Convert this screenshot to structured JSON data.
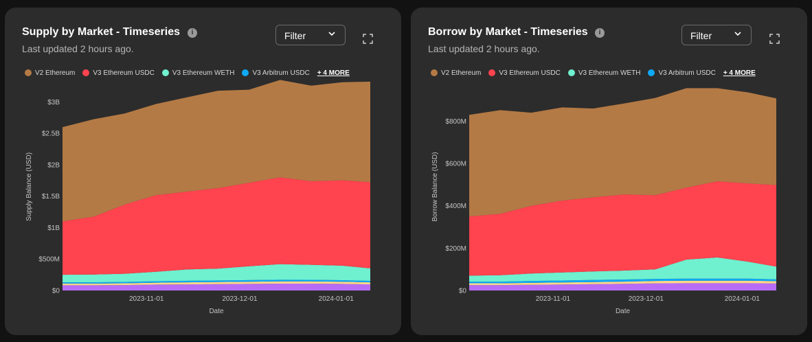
{
  "legend": {
    "items": [
      {
        "label": "V2 Ethereum",
        "color": "#b47a45"
      },
      {
        "label": "V3 Ethereum USDC",
        "color": "#ff434f"
      },
      {
        "label": "V3 Ethereum WETH",
        "color": "#6ff0cf"
      },
      {
        "label": "V3 Arbitrum USDC",
        "color": "#0fa9f5"
      }
    ],
    "more": "+ 4 MORE"
  },
  "supply": {
    "title": "Supply by Market - Timeseries",
    "subtitle": "Last updated 2 hours ago.",
    "filter_label": "Filter"
  },
  "borrow": {
    "title": "Borrow by Market - Timeseries",
    "subtitle": "Last updated 2 hours ago.",
    "filter_label": "Filter"
  },
  "chart_data": [
    {
      "type": "area",
      "stacked": true,
      "title": "Supply by Market - Timeseries",
      "xlabel": "Date",
      "ylabel": "Supply Balance (USD)",
      "x_start": "2023-10-05",
      "x_end": "2024-01-12",
      "x_ticks": [
        "2023-11-01",
        "2023-12-01",
        "2024-01-01"
      ],
      "y_ticks": [
        0,
        500000000,
        1000000000,
        1500000000,
        2000000000,
        2500000000,
        3000000000
      ],
      "y_tick_labels": [
        "$0",
        "$500M",
        "$1B",
        "$1.5B",
        "$2B",
        "$2.5B",
        "$3B"
      ],
      "ylim": [
        0,
        3300000000
      ],
      "x": [
        "2023-10-05",
        "2023-10-15",
        "2023-10-25",
        "2023-11-04",
        "2023-11-14",
        "2023-11-24",
        "2023-12-04",
        "2023-12-14",
        "2023-12-24",
        "2024-01-03",
        "2024-01-12"
      ],
      "series": [
        {
          "name": "V3 Ethereum USDC",
          "values": [
            850000000,
            920000000,
            1100000000,
            1220000000,
            1240000000,
            1280000000,
            1330000000,
            1380000000,
            1330000000,
            1360000000,
            1370000000
          ]
        },
        {
          "name": "V3 Ethereum WETH",
          "values": [
            120000000,
            125000000,
            130000000,
            150000000,
            180000000,
            190000000,
            220000000,
            250000000,
            240000000,
            230000000,
            200000000
          ]
        },
        {
          "name": "V3 Arbitrum USDC",
          "values": [
            20000000,
            20000000,
            22000000,
            22000000,
            24000000,
            24000000,
            25000000,
            25000000,
            24000000,
            24000000,
            23000000
          ]
        },
        {
          "name": "V2 Ethereum",
          "values": [
            1500000000,
            1550000000,
            1450000000,
            1450000000,
            1500000000,
            1550000000,
            1480000000,
            1550000000,
            1520000000,
            1560000000,
            1600000000
          ]
        }
      ],
      "other_markets_total": [
        110000000,
        110000000,
        115000000,
        125000000,
        130000000,
        135000000,
        140000000,
        145000000,
        145000000,
        140000000,
        130000000
      ]
    },
    {
      "type": "area",
      "stacked": true,
      "title": "Borrow by Market - Timeseries",
      "xlabel": "Date",
      "ylabel": "Borrow Balance (USD)",
      "x_start": "2023-10-05",
      "x_end": "2024-01-12",
      "x_ticks": [
        "2023-11-01",
        "2023-12-01",
        "2024-01-01"
      ],
      "y_ticks": [
        0,
        200000000,
        400000000,
        600000000,
        800000000
      ],
      "y_tick_labels": [
        "$0",
        "$200M",
        "$400M",
        "$600M",
        "$800M"
      ],
      "ylim": [
        0,
        980000000
      ],
      "x": [
        "2023-10-05",
        "2023-10-15",
        "2023-10-25",
        "2023-11-04",
        "2023-11-14",
        "2023-11-24",
        "2023-12-04",
        "2023-12-14",
        "2023-12-24",
        "2024-01-03",
        "2024-01-12"
      ],
      "series": [
        {
          "name": "V3 Ethereum USDC",
          "values": [
            280000000,
            290000000,
            320000000,
            340000000,
            350000000,
            360000000,
            350000000,
            340000000,
            360000000,
            370000000,
            385000000
          ]
        },
        {
          "name": "V3 Ethereum WETH",
          "values": [
            28000000,
            30000000,
            35000000,
            38000000,
            40000000,
            42000000,
            45000000,
            90000000,
            100000000,
            80000000,
            60000000
          ]
        },
        {
          "name": "V3 Arbitrum USDC",
          "values": [
            8000000,
            8000000,
            9000000,
            9000000,
            10000000,
            10000000,
            10000000,
            10000000,
            10000000,
            10000000,
            9000000
          ]
        },
        {
          "name": "V2 Ethereum",
          "values": [
            480000000,
            490000000,
            440000000,
            440000000,
            420000000,
            430000000,
            460000000,
            470000000,
            440000000,
            430000000,
            410000000
          ]
        }
      ],
      "other_markets_total": [
        34000000,
        34000000,
        36000000,
        38000000,
        40000000,
        42000000,
        45000000,
        46000000,
        46000000,
        46000000,
        44000000
      ]
    }
  ],
  "extra_series_colors": [
    "#fad78a",
    "#b86cf5"
  ]
}
